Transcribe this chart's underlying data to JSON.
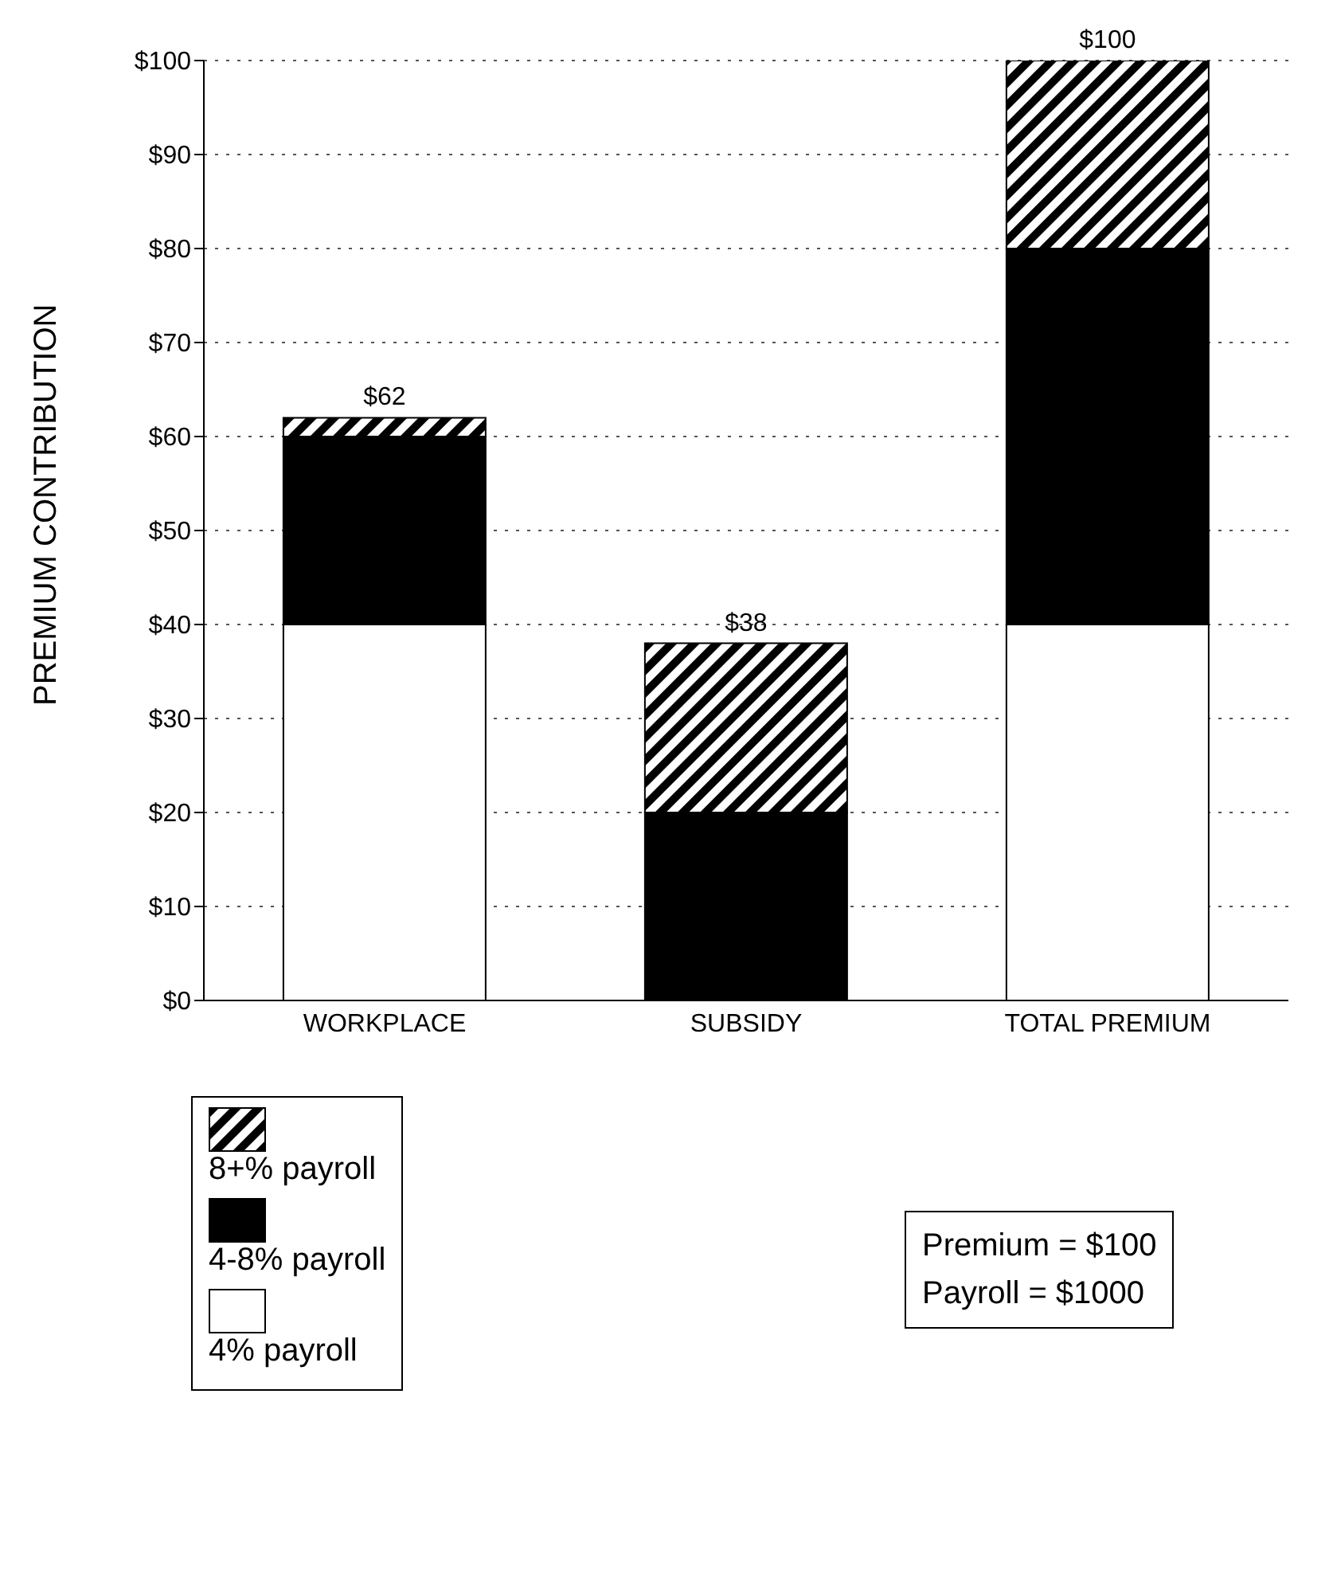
{
  "chart_data": {
    "type": "bar",
    "stacked": true,
    "ylabel": "PREMIUM CONTRIBUTION",
    "categories": [
      "WORKPLACE",
      "SUBSIDY",
      "TOTAL PREMIUM"
    ],
    "series": [
      {
        "name": "4% payroll",
        "color": "#ffffff",
        "values": [
          40,
          0,
          40
        ]
      },
      {
        "name": "4-8% payroll",
        "color": "#000000",
        "values": [
          20,
          20,
          40
        ]
      },
      {
        "name": "8+% payroll",
        "color": "#000000",
        "values": [
          2,
          18,
          20
        ]
      }
    ],
    "totals": [
      "$62",
      "$38",
      "$100"
    ],
    "ylim": [
      0,
      100
    ],
    "yticks": [
      {
        "value": 0,
        "label": "$0"
      },
      {
        "value": 10,
        "label": "$10"
      },
      {
        "value": 20,
        "label": "$20"
      },
      {
        "value": 30,
        "label": "$30"
      },
      {
        "value": 40,
        "label": "$40"
      },
      {
        "value": 50,
        "label": "$50"
      },
      {
        "value": 60,
        "label": "$60"
      },
      {
        "value": 70,
        "label": "$70"
      },
      {
        "value": 80,
        "label": "$80"
      },
      {
        "value": 90,
        "label": "$90"
      },
      {
        "value": 100,
        "label": "$100"
      }
    ],
    "grid": "y",
    "legend": "bottom left",
    "annotations": [
      "Premium = $100",
      "Payroll = $1000"
    ]
  }
}
